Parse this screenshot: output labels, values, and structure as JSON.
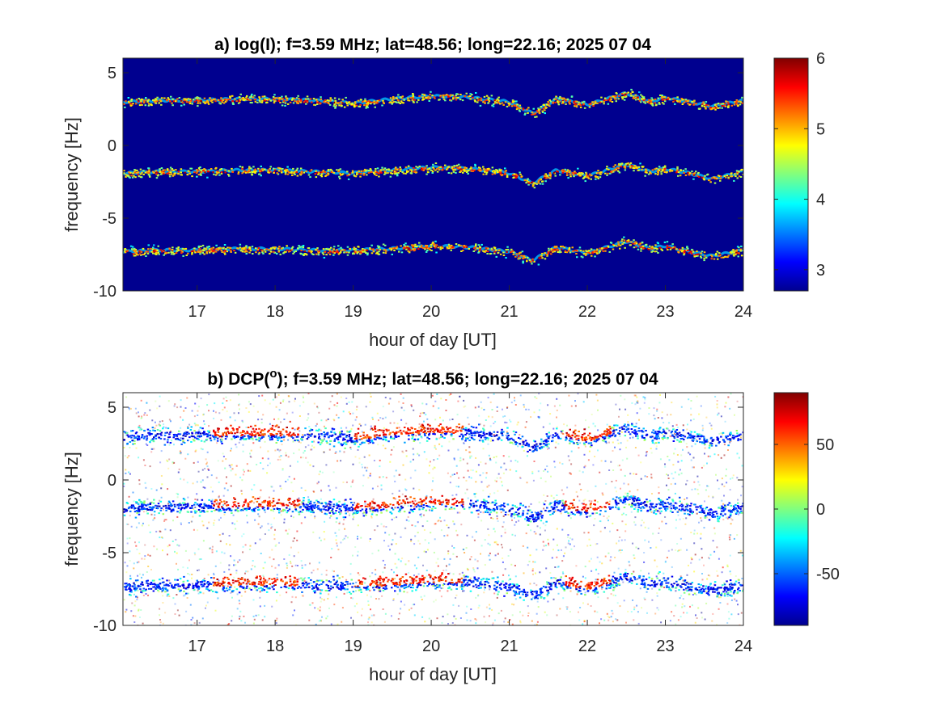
{
  "chart_data": [
    {
      "type": "heatmap",
      "title": "a) log(I); f=3.59 MHz;  lat=48.56; long=22.16; 2025 07 04",
      "xlabel": "hour of day [UT]",
      "ylabel": "frequency [Hz]",
      "xlim": [
        16.05,
        24
      ],
      "ylim": [
        -10,
        6
      ],
      "xticks": [
        "17",
        "18",
        "19",
        "20",
        "21",
        "22",
        "23",
        "24"
      ],
      "yticks": [
        "5",
        "0",
        "-5",
        "-10"
      ],
      "background": "#00008f",
      "colorbar": {
        "min": 2.7,
        "max": 6,
        "ticks": [
          "3",
          "4",
          "5",
          "6"
        ],
        "colormap": "jet"
      },
      "traces": [
        {
          "x": [
            16.1,
            16.5,
            17.0,
            17.5,
            18.0,
            18.5,
            19.0,
            19.5,
            20.0,
            20.5,
            21.0,
            21.3,
            21.6,
            22.0,
            22.5,
            22.8,
            23.0,
            23.3,
            23.6,
            24.0
          ],
          "y": [
            3.0,
            3.1,
            3.1,
            3.2,
            3.2,
            3.1,
            2.9,
            3.2,
            3.4,
            3.3,
            3.0,
            2.2,
            3.2,
            2.8,
            3.6,
            3.0,
            3.3,
            3.0,
            2.7,
            3.1
          ]
        },
        {
          "x": [
            16.1,
            16.5,
            17.0,
            17.5,
            18.0,
            18.5,
            19.0,
            19.5,
            20.0,
            20.5,
            21.0,
            21.3,
            21.6,
            22.0,
            22.5,
            22.8,
            23.0,
            23.3,
            23.6,
            24.0
          ],
          "y": [
            -1.9,
            -1.8,
            -1.8,
            -1.7,
            -1.7,
            -1.8,
            -1.9,
            -1.7,
            -1.5,
            -1.6,
            -1.9,
            -2.6,
            -1.7,
            -2.1,
            -1.3,
            -1.8,
            -1.6,
            -1.9,
            -2.3,
            -1.8
          ]
        },
        {
          "x": [
            16.1,
            16.5,
            17.0,
            17.5,
            18.0,
            18.5,
            19.0,
            19.5,
            20.0,
            20.5,
            21.0,
            21.3,
            21.6,
            22.0,
            22.5,
            22.8,
            23.0,
            23.3,
            23.6,
            24.0
          ],
          "y": [
            -7.3,
            -7.2,
            -7.2,
            -7.1,
            -7.1,
            -7.2,
            -7.2,
            -7.1,
            -6.9,
            -7.0,
            -7.3,
            -7.9,
            -7.0,
            -7.4,
            -6.6,
            -7.1,
            -6.9,
            -7.3,
            -7.6,
            -7.2
          ]
        }
      ]
    },
    {
      "type": "heatmap",
      "title": "b) DCP(",
      "title_sup": "o",
      "title_rest": "); f=3.59 MHz;  lat=48.56; long=22.16; 2025 07 04",
      "xlabel": "hour of day [UT]",
      "ylabel": "frequency [Hz]",
      "xlim": [
        16.05,
        24
      ],
      "ylim": [
        -10,
        6
      ],
      "xticks": [
        "17",
        "18",
        "19",
        "20",
        "21",
        "22",
        "23",
        "24"
      ],
      "yticks": [
        "5",
        "0",
        "-5",
        "-10"
      ],
      "background": "#ffffff",
      "colorbar": {
        "min": -90,
        "max": 90,
        "ticks": [
          "50",
          "0",
          "-50"
        ],
        "colormap": "jet"
      },
      "red_hours": [
        [
          17.2,
          18.3
        ],
        [
          19.0,
          20.4
        ],
        [
          21.7,
          22.3
        ]
      ]
    }
  ]
}
